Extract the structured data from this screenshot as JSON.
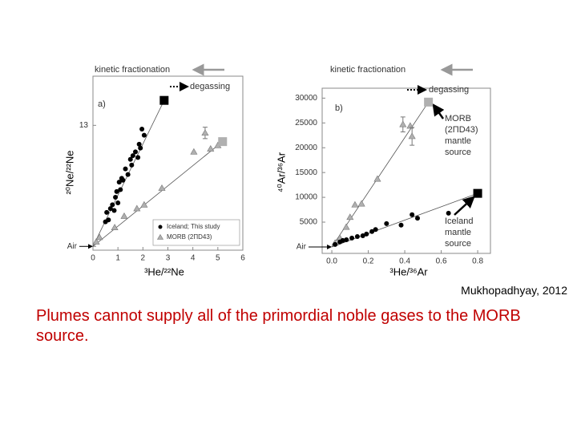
{
  "chart_data": [
    {
      "type": "scatter",
      "xlabel": "³He/²²Ne",
      "ylabel": "²⁰Ne/²²Ne",
      "xlim": [
        0,
        6
      ],
      "xticks": [
        0,
        1,
        2,
        3,
        4,
        5,
        6
      ],
      "ylim": [
        9.7,
        14.3
      ],
      "yticks": [
        {
          "value": 9.8,
          "label": "Air"
        },
        13
      ],
      "legend": "lower right",
      "annotations": [
        "kinetic fractionation",
        "degassing",
        "a)"
      ],
      "series": [
        {
          "name": "Iceland; This study",
          "marker": "circle",
          "color": "#000000",
          "x": [
            0.5,
            0.55,
            0.62,
            0.7,
            0.78,
            0.85,
            0.9,
            0.95,
            1.0,
            1.05,
            1.1,
            1.15,
            1.2,
            1.3,
            1.4,
            1.5,
            1.55,
            1.6,
            1.7,
            1.8,
            1.85,
            1.9,
            1.96,
            2.05
          ],
          "y": [
            10.45,
            10.7,
            10.5,
            10.8,
            10.9,
            10.75,
            11.1,
            11.25,
            10.95,
            11.5,
            11.3,
            11.6,
            11.55,
            11.85,
            11.7,
            12.1,
            11.95,
            12.2,
            12.3,
            12.15,
            12.5,
            12.4,
            12.9,
            12.74
          ]
        },
        {
          "name": "MORB (2ΠD43)",
          "marker": "triangle",
          "color": "#b0b0b0",
          "x": [
            0.13,
            0.26,
            0.87,
            1.25,
            1.76,
            2.05,
            2.76,
            4.04,
            4.49,
            4.71,
            5.0
          ],
          "y": [
            9.92,
            10.04,
            10.3,
            10.6,
            10.8,
            10.9,
            11.34,
            12.3,
            12.8,
            12.38,
            12.47
          ],
          "errors": [
            null,
            null,
            null,
            null,
            null,
            null,
            null,
            null,
            0.15,
            null,
            null
          ]
        },
        {
          "marker": "square",
          "color": "#000000",
          "x": [
            2.85
          ],
          "y": [
            13.66
          ]
        },
        {
          "marker": "square",
          "color": "#b0b0b0",
          "x": [
            5.19
          ],
          "y": [
            12.57
          ]
        }
      ]
    },
    {
      "type": "scatter",
      "xlabel": "³He/³⁶Ar",
      "ylabel": "⁴⁰Ar/³⁶Ar",
      "xlim": [
        -0.053,
        0.87
      ],
      "xticks": [
        {
          "value": 0,
          "label": "0.0"
        },
        0.2,
        0.4,
        0.6,
        0.8
      ],
      "ylim": [
        -1300,
        32000
      ],
      "yticks": [
        {
          "value": 0,
          "label": "Air"
        },
        5000,
        10000,
        15000,
        20000,
        25000,
        30000
      ],
      "annotations": [
        "kinetic fractionation",
        "degassing",
        "b)",
        "MORB",
        "(2ΠD43)",
        "mantle",
        "source",
        "Iceland",
        "mantle",
        "source"
      ],
      "series": [
        {
          "marker": "triangle",
          "color": "#b0b0b0",
          "x": [
            0.018,
            0.044,
            0.079,
            0.1,
            0.127,
            0.163,
            0.25,
            0.39,
            0.43,
            0.44
          ],
          "y": [
            800,
            1800,
            4000,
            6000,
            8500,
            8700,
            13700,
            24700,
            24400,
            22300
          ],
          "errors": [
            null,
            null,
            null,
            null,
            null,
            null,
            null,
            1500,
            null,
            1800
          ]
        },
        {
          "marker": "circle",
          "color": "#000000",
          "x": [
            0.018,
            0.044,
            0.06,
            0.08,
            0.11,
            0.14,
            0.17,
            0.19,
            0.22,
            0.24,
            0.3,
            0.38,
            0.44,
            0.47,
            0.64
          ],
          "y": [
            500,
            1000,
            1300,
            1450,
            1800,
            2100,
            2250,
            2600,
            3100,
            3500,
            4700,
            4400,
            6500,
            5800,
            6800
          ]
        },
        {
          "marker": "square",
          "color": "#b0b0b0",
          "x": [
            0.53
          ],
          "y": [
            29200
          ]
        },
        {
          "marker": "square",
          "color": "#000000",
          "x": [
            0.8
          ],
          "y": [
            10800
          ]
        }
      ]
    }
  ],
  "citation": "Mukhopadhyay, 2012",
  "caption": "Plumes cannot supply all of the primordial noble gases to the MORB source."
}
